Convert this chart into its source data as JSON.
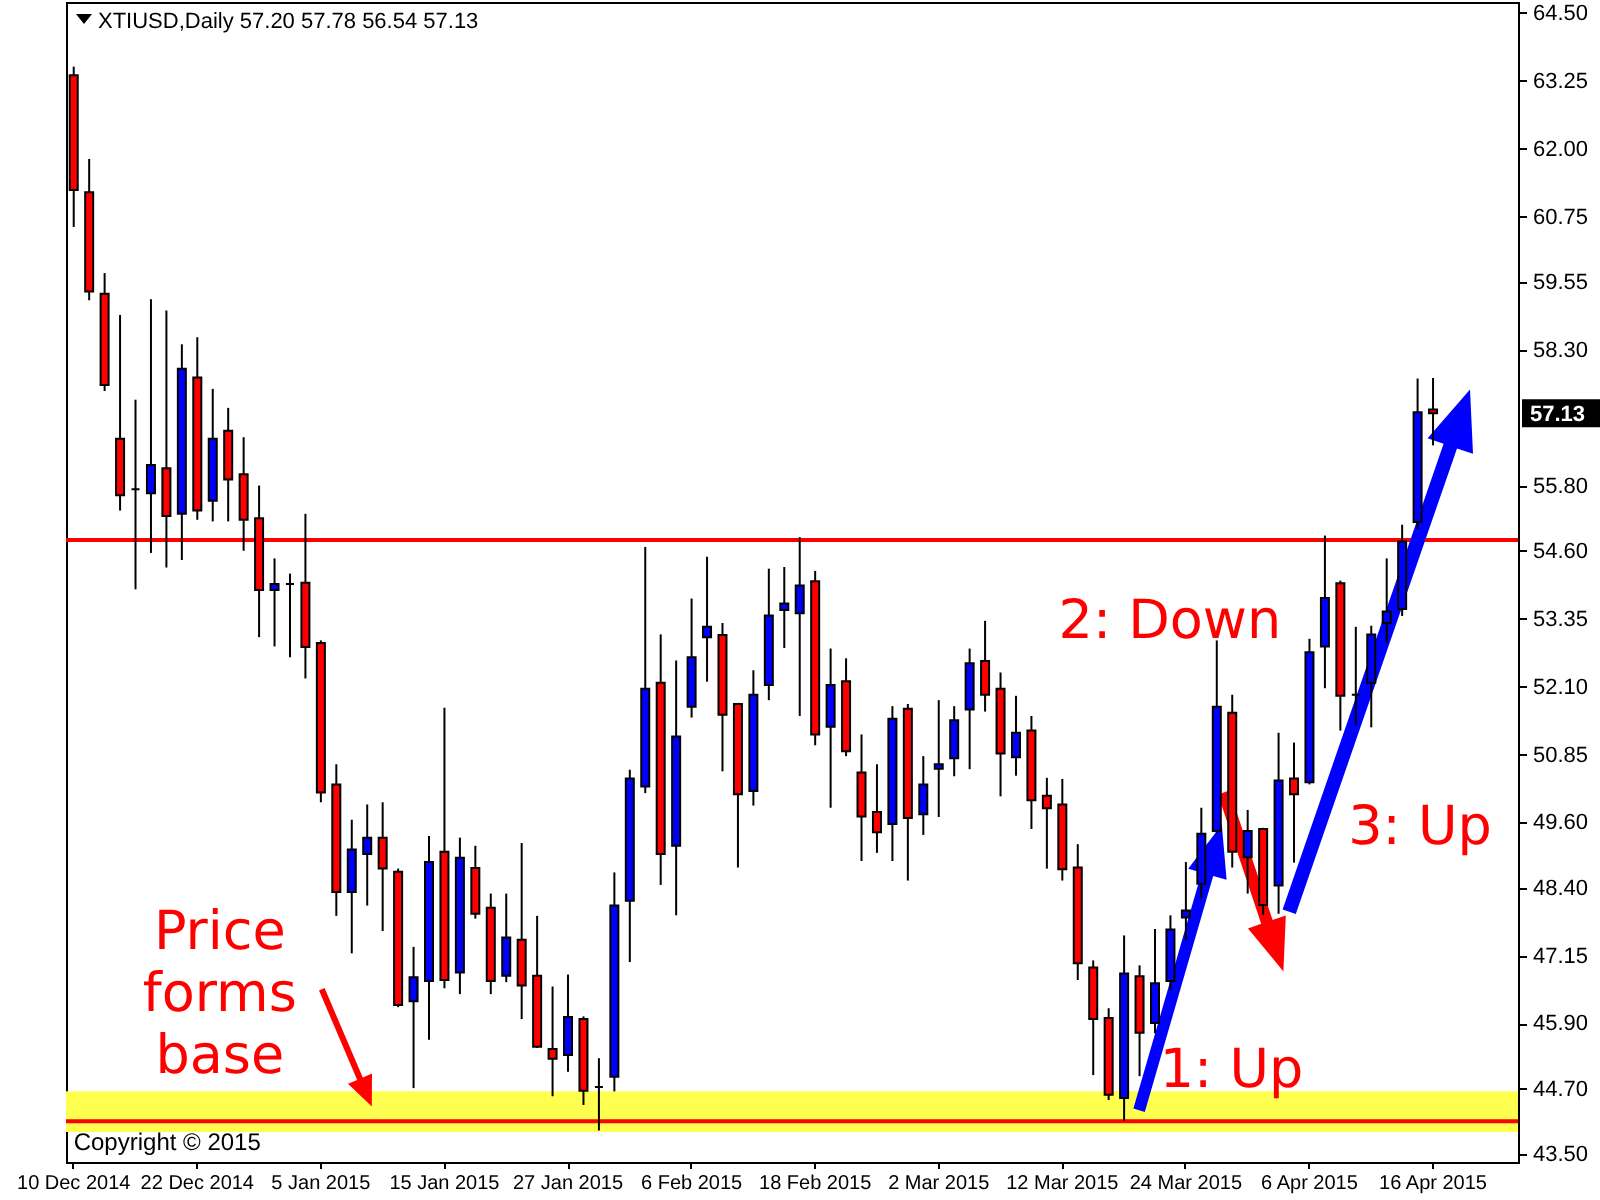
{
  "chart_data": {
    "type": "candlestick",
    "title": "XTIUSD,Daily 57.20 57.78 56.54 57.13",
    "categories": [
      "10 Dec 2014",
      null,
      null,
      null,
      null,
      null,
      null,
      null,
      "22 Dec 2014",
      null,
      null,
      null,
      null,
      null,
      null,
      null,
      "5 Jan 2015",
      null,
      null,
      null,
      null,
      null,
      null,
      null,
      "15 Jan 2015",
      null,
      null,
      null,
      null,
      null,
      null,
      null,
      "27 Jan 2015",
      null,
      null,
      null,
      null,
      null,
      null,
      null,
      "6 Feb 2015",
      null,
      null,
      null,
      null,
      null,
      null,
      null,
      "18 Feb 2015",
      null,
      null,
      null,
      null,
      null,
      null,
      null,
      "2 Mar 2015",
      null,
      null,
      null,
      null,
      null,
      null,
      null,
      "12 Mar 2015",
      null,
      null,
      null,
      null,
      null,
      null,
      null,
      "24 Mar 2015",
      null,
      null,
      null,
      null,
      null,
      null,
      null,
      "6 Apr 2015",
      null,
      null,
      null,
      null,
      null,
      null,
      null,
      "16 Apr 2015",
      null,
      null,
      null,
      null,
      null
    ],
    "ohlc": [
      [
        63.35,
        63.51,
        60.56,
        61.24
      ],
      [
        61.2,
        61.81,
        59.21,
        59.37
      ],
      [
        59.33,
        59.71,
        57.54,
        57.65
      ],
      [
        56.66,
        58.94,
        55.34,
        55.62
      ],
      [
        55.73,
        57.38,
        53.89,
        55.73
      ],
      [
        55.66,
        59.23,
        54.56,
        56.18
      ],
      [
        56.12,
        59.02,
        54.29,
        55.24
      ],
      [
        55.28,
        58.4,
        54.43,
        57.95
      ],
      [
        57.79,
        58.53,
        55.17,
        55.34
      ],
      [
        55.52,
        57.58,
        55.14,
        56.66
      ],
      [
        56.81,
        57.23,
        55.14,
        55.91
      ],
      [
        56.01,
        56.69,
        54.6,
        55.17
      ],
      [
        55.2,
        55.8,
        53.01,
        53.88
      ],
      [
        53.88,
        54.46,
        52.84,
        53.99
      ],
      [
        53.99,
        54.18,
        52.64,
        53.99
      ],
      [
        54.01,
        55.28,
        52.25,
        52.83
      ],
      [
        52.9,
        52.95,
        49.97,
        50.15
      ],
      [
        50.3,
        50.67,
        47.88,
        48.32
      ],
      [
        48.32,
        49.65,
        47.19,
        49.1
      ],
      [
        49.02,
        49.93,
        48.07,
        49.32
      ],
      [
        49.32,
        49.97,
        47.6,
        48.75
      ],
      [
        48.69,
        48.75,
        46.2,
        46.24
      ],
      [
        46.31,
        47.31,
        44.71,
        46.75
      ],
      [
        46.68,
        49.35,
        45.6,
        48.87
      ],
      [
        49.06,
        51.71,
        46.55,
        46.7
      ],
      [
        46.84,
        49.32,
        46.44,
        48.95
      ],
      [
        48.76,
        49.17,
        47.83,
        47.92
      ],
      [
        48.03,
        48.29,
        46.44,
        46.68
      ],
      [
        46.78,
        48.29,
        46.66,
        47.48
      ],
      [
        47.44,
        49.22,
        45.98,
        46.6
      ],
      [
        46.78,
        47.88,
        45.45,
        45.47
      ],
      [
        45.43,
        46.58,
        44.56,
        45.25
      ],
      [
        45.32,
        46.8,
        45.01,
        46.02
      ],
      [
        45.98,
        46.03,
        44.4,
        44.66
      ],
      [
        44.73,
        45.26,
        43.93,
        44.73
      ],
      [
        44.92,
        48.68,
        44.65,
        48.07
      ],
      [
        48.16,
        50.57,
        47.03,
        50.41
      ],
      [
        50.26,
        54.67,
        50.14,
        52.06
      ],
      [
        52.17,
        53.06,
        48.45,
        49.02
      ],
      [
        49.17,
        52.58,
        47.89,
        51.18
      ],
      [
        51.73,
        53.72,
        51.53,
        52.64
      ],
      [
        53.01,
        54.49,
        52.19,
        53.2
      ],
      [
        53.05,
        53.27,
        50.54,
        51.58
      ],
      [
        51.78,
        51.8,
        48.77,
        50.12
      ],
      [
        50.18,
        52.4,
        49.91,
        51.95
      ],
      [
        52.13,
        54.27,
        51.85,
        53.41
      ],
      [
        53.51,
        54.3,
        52.81,
        53.63
      ],
      [
        53.45,
        54.85,
        51.56,
        53.96
      ],
      [
        54.04,
        54.23,
        51.02,
        51.22
      ],
      [
        51.36,
        52.8,
        49.87,
        52.13
      ],
      [
        52.2,
        52.62,
        50.82,
        50.91
      ],
      [
        50.52,
        51.22,
        48.89,
        49.71
      ],
      [
        49.79,
        50.67,
        49.04,
        49.42
      ],
      [
        49.57,
        51.74,
        48.89,
        51.51
      ],
      [
        51.69,
        51.78,
        48.53,
        49.68
      ],
      [
        49.75,
        50.82,
        49.37,
        50.3
      ],
      [
        50.59,
        51.85,
        49.7,
        50.67
      ],
      [
        50.78,
        51.74,
        50.45,
        51.48
      ],
      [
        51.68,
        52.8,
        50.58,
        52.53
      ],
      [
        52.57,
        53.31,
        51.64,
        51.95
      ],
      [
        52.06,
        52.36,
        50.08,
        50.87
      ],
      [
        50.8,
        51.93,
        50.46,
        51.25
      ],
      [
        51.29,
        51.56,
        49.48,
        50.01
      ],
      [
        50.09,
        50.42,
        48.75,
        49.86
      ],
      [
        49.93,
        50.4,
        48.53,
        48.74
      ],
      [
        48.77,
        49.2,
        46.7,
        47.01
      ],
      [
        46.93,
        47.06,
        44.95,
        45.98
      ],
      [
        46.0,
        46.18,
        44.49,
        44.59
      ],
      [
        44.53,
        47.52,
        44.11,
        46.82
      ],
      [
        46.77,
        46.97,
        44.93,
        45.73
      ],
      [
        45.91,
        47.64,
        45.72,
        46.64
      ],
      [
        46.68,
        47.89,
        46.51,
        47.63
      ],
      [
        47.85,
        48.87,
        47.43,
        47.98
      ],
      [
        48.47,
        49.87,
        48.2,
        49.39
      ],
      [
        49.44,
        52.95,
        49.4,
        51.73
      ],
      [
        51.62,
        51.95,
        48.77,
        49.06
      ],
      [
        48.96,
        49.83,
        48.29,
        49.44
      ],
      [
        49.48,
        49.5,
        47.9,
        48.08
      ],
      [
        48.44,
        51.25,
        47.92,
        50.37
      ],
      [
        50.41,
        51.07,
        48.86,
        50.12
      ],
      [
        50.34,
        52.98,
        50.3,
        52.73
      ],
      [
        52.84,
        54.88,
        52.07,
        53.73
      ],
      [
        54.0,
        54.05,
        51.29,
        51.93
      ],
      [
        51.95,
        53.2,
        51.39,
        51.95
      ],
      [
        52.17,
        53.22,
        51.35,
        53.06
      ],
      [
        53.27,
        54.46,
        52.9,
        53.48
      ],
      [
        53.53,
        55.08,
        53.4,
        54.77
      ],
      [
        55.13,
        57.77,
        55.0,
        57.15
      ],
      [
        57.2,
        57.78,
        56.54,
        57.13
      ],
      null,
      null,
      null,
      null,
      null
    ],
    "colors": [
      "#ff0000",
      "#ff0000",
      "#ff0000",
      "#ff0000",
      "#000000",
      "#0000ff",
      "#ff0000",
      "#0000ff",
      "#ff0000",
      "#0000ff",
      "#ff0000",
      "#ff0000",
      "#ff0000",
      "#0000ff",
      "#000000",
      "#ff0000",
      "#ff0000",
      "#ff0000",
      "#0000ff",
      "#0000ff",
      "#ff0000",
      "#ff0000",
      "#0000ff",
      "#0000ff",
      "#ff0000",
      "#0000ff",
      "#ff0000",
      "#ff0000",
      "#0000ff",
      "#ff0000",
      "#ff0000",
      "#ff0000",
      "#0000ff",
      "#ff0000",
      "#000000",
      "#0000ff",
      "#0000ff",
      "#0000ff",
      "#ff0000",
      "#0000ff",
      "#0000ff",
      "#0000ff",
      "#ff0000",
      "#ff0000",
      "#0000ff",
      "#0000ff",
      "#0000ff",
      "#0000ff",
      "#ff0000",
      "#0000ff",
      "#ff0000",
      "#ff0000",
      "#ff0000",
      "#0000ff",
      "#ff0000",
      "#0000ff",
      "#0000ff",
      "#0000ff",
      "#0000ff",
      "#ff0000",
      "#ff0000",
      "#0000ff",
      "#ff0000",
      "#ff0000",
      "#ff0000",
      "#ff0000",
      "#ff0000",
      "#ff0000",
      "#0000ff",
      "#ff0000",
      "#0000ff",
      "#0000ff",
      "#0000ff",
      "#0000ff",
      "#0000ff",
      "#ff0000",
      "#0000ff",
      "#ff0000",
      "#0000ff",
      "#ff0000",
      "#0000ff",
      "#0000ff",
      "#ff0000",
      "#000000",
      "#0000ff",
      "#0000ff",
      "#0000ff",
      "#0000ff",
      "#ff0000",
      null,
      null,
      null,
      null,
      null
    ],
    "ylim": [
      43.35,
      64.7
    ],
    "yticks": [
      {
        "value": 64.5,
        "label": "64.50"
      },
      {
        "value": 63.25,
        "label": "63.25"
      },
      {
        "value": 62,
        "label": "62.00"
      },
      {
        "value": 60.75,
        "label": "60.75"
      },
      {
        "value": 59.55,
        "label": "59.55"
      },
      {
        "value": 58.3,
        "label": "58.30"
      },
      {
        "value": 55.8,
        "label": "55.80"
      },
      {
        "value": 54.6,
        "label": "54.60"
      },
      {
        "value": 53.35,
        "label": "53.35"
      },
      {
        "value": 52.1,
        "label": "52.10"
      },
      {
        "value": 50.85,
        "label": "50.85"
      },
      {
        "value": 49.6,
        "label": "49.60"
      },
      {
        "value": 48.4,
        "label": "48.40"
      },
      {
        "value": 47.15,
        "label": "47.15"
      },
      {
        "value": 45.9,
        "label": "45.90"
      },
      {
        "value": 44.7,
        "label": "44.70"
      },
      {
        "value": 43.5,
        "label": "43.50"
      }
    ],
    "ref_lines": [
      {
        "axis": "y",
        "value": 54.8,
        "color": "#ff0000"
      },
      {
        "axis": "y",
        "value": 44.1,
        "color": "#ff0000"
      }
    ],
    "bands": [
      {
        "axis": "y",
        "from": 43.9,
        "to": 44.65,
        "color": "#ffff50"
      }
    ],
    "annotations": [
      "Price forms base",
      "1: Up",
      "2: Down",
      "3: Up",
      "Copyright © 2015",
      "57.13"
    ]
  }
}
